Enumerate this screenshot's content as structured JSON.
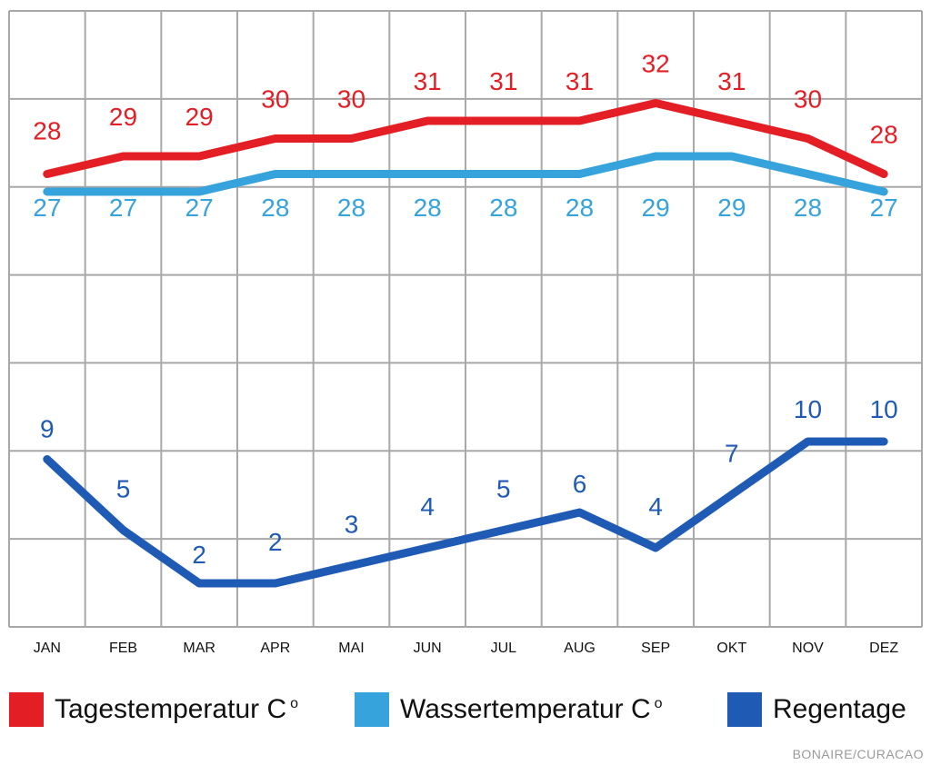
{
  "chart_data": {
    "type": "line",
    "categories": [
      "JAN",
      "FEB",
      "MAR",
      "APR",
      "MAI",
      "JUN",
      "JUL",
      "AUG",
      "SEP",
      "OKT",
      "NOV",
      "DEZ"
    ],
    "series": [
      {
        "name": "Tagestemperatur C°",
        "color": "#e31e24",
        "values": [
          28,
          29,
          29,
          30,
          30,
          31,
          31,
          31,
          32,
          31,
          30,
          28
        ]
      },
      {
        "name": "Wassertemperatur C°",
        "color": "#36a3dc",
        "values": [
          27,
          27,
          27,
          28,
          28,
          28,
          28,
          28,
          29,
          29,
          28,
          27
        ]
      },
      {
        "name": "Regentage",
        "color": "#1f5bb5",
        "values": [
          9,
          5,
          2,
          2,
          3,
          4,
          5,
          6,
          4,
          7,
          10,
          10
        ]
      }
    ],
    "grid": true
  },
  "legend": {
    "items": [
      {
        "label": "Tagestemperatur C",
        "degree": "o",
        "color": "#e31e24"
      },
      {
        "label": "Wassertemperatur C",
        "degree": "o",
        "color": "#36a3dc"
      },
      {
        "label": "Regentage",
        "color": "#1f5bb5"
      }
    ]
  },
  "credit": "BONAIRE/CURACAO"
}
